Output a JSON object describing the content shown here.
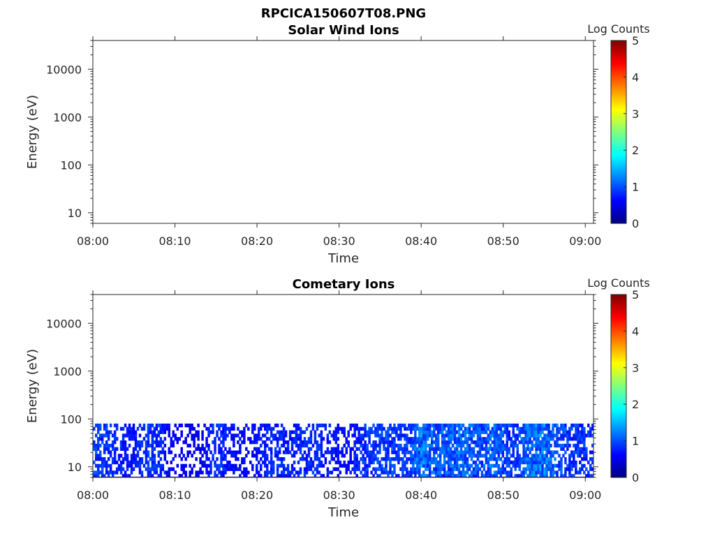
{
  "figure": {
    "title": "RPCICA150607T08.PNG"
  },
  "chart_data": [
    {
      "type": "heatmap",
      "title": "Solar Wind Ions",
      "xlabel": "Time",
      "ylabel": "Energy (eV)",
      "x_ticks": [
        "08:00",
        "08:10",
        "08:20",
        "08:30",
        "08:40",
        "08:50",
        "09:00"
      ],
      "xlim_minutes": [
        0,
        61
      ],
      "y_scale": "log",
      "y_ticks": [
        10,
        100,
        1000,
        10000
      ],
      "y_tick_labels": [
        "10",
        "100",
        "1000",
        "10000"
      ],
      "ylim": [
        6,
        40000
      ],
      "colorbar": {
        "label": "Log Counts",
        "colormap": "jet",
        "range": [
          0,
          5
        ],
        "ticks": [
          "0",
          "1",
          "2",
          "3",
          "4",
          "5"
        ]
      },
      "data_description": "no counts"
    },
    {
      "type": "heatmap",
      "title": "Cometary Ions",
      "xlabel": "Time",
      "ylabel": "Energy (eV)",
      "x_ticks": [
        "08:00",
        "08:10",
        "08:20",
        "08:30",
        "08:40",
        "08:50",
        "09:00"
      ],
      "xlim_minutes": [
        0,
        61
      ],
      "y_scale": "log",
      "y_ticks": [
        10,
        100,
        1000,
        10000
      ],
      "y_tick_labels": [
        "10",
        "100",
        "1000",
        "10000"
      ],
      "ylim": [
        6,
        40000
      ],
      "colorbar": {
        "label": "Log Counts",
        "colormap": "jet",
        "range": [
          0,
          5
        ],
        "ticks": [
          "0",
          "1",
          "2",
          "3",
          "4",
          "5"
        ]
      },
      "energy_range_with_counts": [
        6,
        80
      ],
      "intensity_profile_minutes": [
        [
          0,
          0.55
        ],
        [
          3,
          0.45
        ],
        [
          5,
          0.3
        ],
        [
          6,
          0.45
        ],
        [
          8,
          0.5
        ],
        [
          9,
          0.25
        ],
        [
          11,
          0.2
        ],
        [
          13,
          0.15
        ],
        [
          15,
          0.5
        ],
        [
          17,
          0.3
        ],
        [
          19,
          0.25
        ],
        [
          22,
          0.45
        ],
        [
          24,
          0.35
        ],
        [
          27,
          0.45
        ],
        [
          29,
          0.35
        ],
        [
          31,
          0.25
        ],
        [
          33,
          0.5
        ],
        [
          35,
          0.55
        ],
        [
          38,
          0.5
        ],
        [
          40,
          0.85
        ],
        [
          42,
          0.65
        ],
        [
          45,
          0.8
        ],
        [
          47,
          0.6
        ],
        [
          49,
          0.75
        ],
        [
          51,
          0.5
        ],
        [
          53,
          0.75
        ],
        [
          55,
          0.85
        ],
        [
          57,
          0.6
        ],
        [
          59,
          0.5
        ],
        [
          61,
          0.45
        ]
      ]
    }
  ]
}
